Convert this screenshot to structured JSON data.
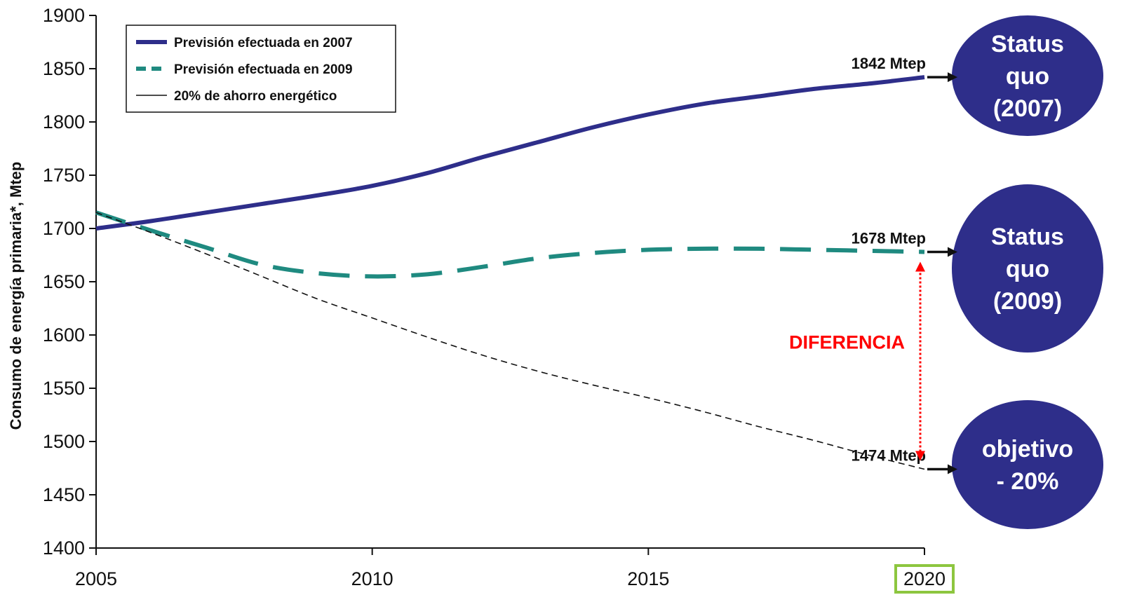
{
  "chart_data": {
    "type": "line",
    "ylabel": "Consumo de energía primaria*, Mtep",
    "xlabel": "",
    "xlim": [
      2005,
      2020
    ],
    "ylim": [
      1400,
      1900
    ],
    "x_ticks": [
      2005,
      2010,
      2015,
      2020
    ],
    "y_ticks": [
      1400,
      1450,
      1500,
      1550,
      1600,
      1650,
      1700,
      1750,
      1800,
      1850,
      1900
    ],
    "highlighted_x_tick": 2020,
    "highlight_color": "#8dc63f",
    "grid": false,
    "legend_position": "top-left",
    "series": [
      {
        "name": "Previsión efectuada en 2007",
        "style": "solid-thick",
        "color": "#2e2e8a",
        "x": [
          2005,
          2006,
          2007,
          2008,
          2009,
          2010,
          2011,
          2012,
          2013,
          2014,
          2015,
          2016,
          2017,
          2018,
          2019,
          2020
        ],
        "y": [
          1700,
          1707,
          1715,
          1723,
          1731,
          1740,
          1752,
          1767,
          1781,
          1795,
          1807,
          1817,
          1824,
          1831,
          1836,
          1842
        ]
      },
      {
        "name": "Previsión efectuada en 2009",
        "style": "dashed-thick",
        "color": "#1f8a80",
        "x": [
          2005,
          2006,
          2007,
          2008,
          2009,
          2010,
          2011,
          2012,
          2013,
          2014,
          2015,
          2016,
          2017,
          2018,
          2019,
          2020
        ],
        "y": [
          1715,
          1698,
          1682,
          1666,
          1658,
          1655,
          1657,
          1664,
          1672,
          1677,
          1680,
          1681,
          1681,
          1680,
          1679,
          1678
        ]
      },
      {
        "name": "20% de ahorro energético",
        "style": "dashed-thin",
        "color": "#111111",
        "x": [
          2005,
          2006,
          2007,
          2008,
          2009,
          2010,
          2011,
          2012,
          2013,
          2014,
          2015,
          2016,
          2017,
          2018,
          2019,
          2020
        ],
        "y": [
          1715,
          1696,
          1676,
          1655,
          1634,
          1616,
          1598,
          1581,
          1566,
          1553,
          1541,
          1528,
          1514,
          1501,
          1487,
          1474
        ]
      }
    ],
    "end_labels": [
      "1842 Mtep",
      "1678 Mtep",
      "1474 Mtep"
    ],
    "difference_label": "DIFERENCIA",
    "difference_color": "#ff0000",
    "bubbles": [
      {
        "lines": [
          "Status",
          "quo",
          "(2007)"
        ],
        "target_value": 1842
      },
      {
        "lines": [
          "Status",
          "quo",
          "(2009)"
        ],
        "target_value": 1678
      },
      {
        "lines": [
          "objetivo",
          "- 20%"
        ],
        "target_value": 1474
      }
    ],
    "bubble_color": "#2e2e8a"
  }
}
